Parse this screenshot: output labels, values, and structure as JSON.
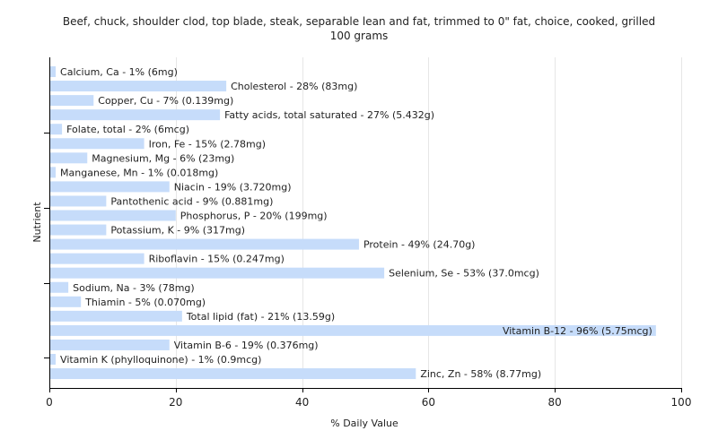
{
  "chart_data": {
    "type": "bar",
    "orientation": "horizontal",
    "title": "Beef, chuck, shoulder clod, top blade, steak, separable lean and fat, trimmed to 0\" fat, choice, cooked, grilled",
    "subtitle": "100 grams",
    "xlabel": "% Daily Value",
    "ylabel": "Nutrient",
    "xlim": [
      0,
      100
    ],
    "xticks": [
      0,
      20,
      40,
      60,
      80,
      100
    ],
    "grid": "vertical",
    "bar_color": "#c6dcfa",
    "categories": [
      "Calcium, Ca",
      "Cholesterol",
      "Copper, Cu",
      "Fatty acids, total saturated",
      "Folate, total",
      "Iron, Fe",
      "Magnesium, Mg",
      "Manganese, Mn",
      "Niacin",
      "Pantothenic acid",
      "Phosphorus, P",
      "Potassium, K",
      "Protein",
      "Riboflavin",
      "Selenium, Se",
      "Sodium, Na",
      "Thiamin",
      "Total lipid (fat)",
      "Vitamin B-12",
      "Vitamin B-6",
      "Vitamin K (phylloquinone)",
      "Zinc, Zn"
    ],
    "values": [
      1,
      28,
      7,
      27,
      2,
      15,
      6,
      1,
      19,
      9,
      20,
      9,
      49,
      15,
      53,
      3,
      5,
      21,
      96,
      19,
      1,
      58
    ],
    "labels": [
      "Calcium, Ca - 1% (6mg)",
      "Cholesterol - 28% (83mg)",
      "Copper, Cu - 7% (0.139mg)",
      "Fatty acids, total saturated - 27% (5.432g)",
      "Folate, total - 2% (6mcg)",
      "Iron, Fe - 15% (2.78mg)",
      "Magnesium, Mg - 6% (23mg)",
      "Manganese, Mn - 1% (0.018mg)",
      "Niacin - 19% (3.720mg)",
      "Pantothenic acid - 9% (0.881mg)",
      "Phosphorus, P - 20% (199mg)",
      "Potassium, K - 9% (317mg)",
      "Protein - 49% (24.70g)",
      "Riboflavin - 15% (0.247mg)",
      "Selenium, Se - 53% (37.0mcg)",
      "Sodium, Na - 3% (78mg)",
      "Thiamin - 5% (0.070mg)",
      "Total lipid (fat) - 21% (13.59g)",
      "Vitamin B-12 - 96% (5.75mcg)",
      "Vitamin B-6 - 19% (0.376mg)",
      "Vitamin K (phylloquinone) - 1% (0.9mcg)",
      "Zinc, Zn - 58% (8.77mg)"
    ]
  }
}
